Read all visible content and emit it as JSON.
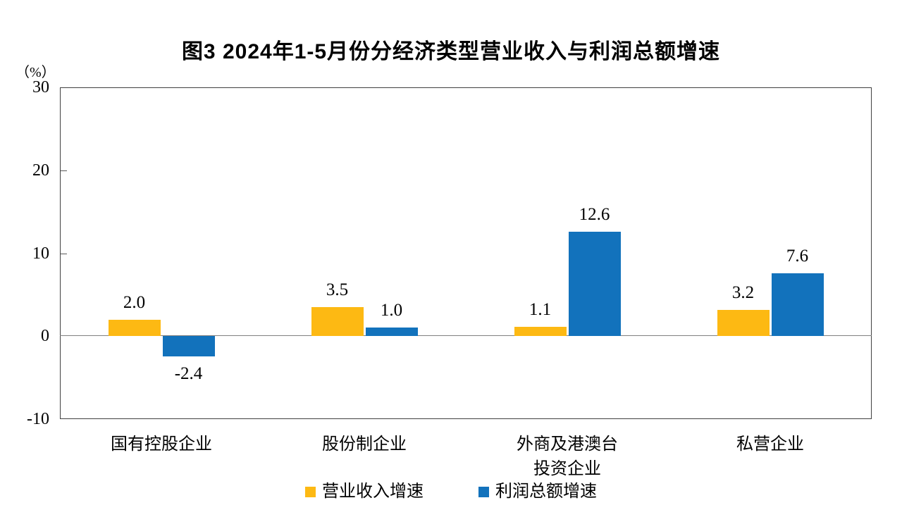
{
  "chart_data": {
    "type": "bar",
    "title": "图3  2024年1-5月份分经济类型营业收入与利润总额增速",
    "unit_label": "（%）",
    "categories": [
      "国有控股企业",
      "股份制企业",
      "外商及港澳台\n投资企业",
      "私营企业"
    ],
    "series": [
      {
        "name": "营业收入增速",
        "color": "#FDB913",
        "values": [
          2.0,
          3.5,
          1.1,
          3.2
        ]
      },
      {
        "name": "利润总额增速",
        "color": "#1272BC",
        "values": [
          -2.4,
          1.0,
          12.6,
          7.6
        ]
      }
    ],
    "data_labels": [
      [
        "2.0",
        "3.5",
        "1.1",
        "3.2"
      ],
      [
        "-2.4",
        "1.0",
        "12.6",
        "7.6"
      ]
    ],
    "ylim": [
      -10,
      30
    ],
    "yticks": [
      30,
      20,
      10,
      0,
      -10
    ],
    "grid": false,
    "legend_position": "bottom",
    "colors": {
      "revenue_series": "#FDB913",
      "profit_series": "#1272BC",
      "zero_line": "#808080",
      "plot_border": "#404040",
      "text": "#000000"
    }
  }
}
